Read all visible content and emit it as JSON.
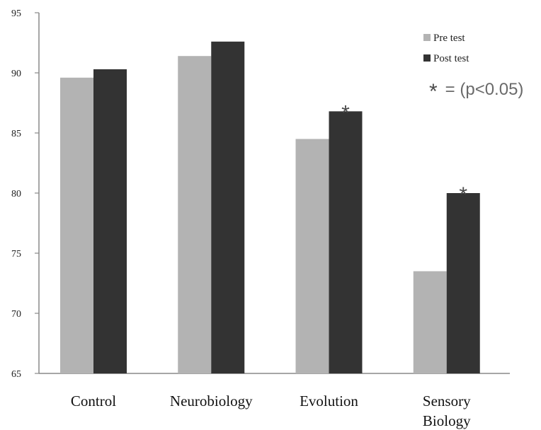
{
  "chart_data": {
    "type": "bar",
    "title": "",
    "xlabel": "",
    "ylabel": "",
    "ylim": [
      65,
      95
    ],
    "yticks": [
      65,
      70,
      75,
      80,
      85,
      90,
      95
    ],
    "ytick_labels": [
      "65",
      "70",
      "75",
      "80",
      "85",
      "90",
      "95"
    ],
    "grid": false,
    "legend_position": "top-right",
    "categories": [
      "Control",
      "Neurobiology",
      "Evolution",
      "Sensory Biology"
    ],
    "category_label_lines": [
      [
        "Control"
      ],
      [
        "Neurobiology"
      ],
      [
        "Evolution"
      ],
      [
        "Sensory",
        "Biology"
      ]
    ],
    "series": [
      {
        "name": "Pre test",
        "color": "#b3b3b3",
        "values": [
          89.6,
          91.4,
          84.5,
          73.5
        ]
      },
      {
        "name": "Post test",
        "color": "#333333",
        "values": [
          90.3,
          92.6,
          86.8,
          80.0
        ]
      }
    ],
    "significance_marker": "*",
    "significant_categories": [
      false,
      false,
      true,
      true
    ],
    "annotation": {
      "symbol": "*",
      "text": " = (p<0.05)"
    }
  }
}
